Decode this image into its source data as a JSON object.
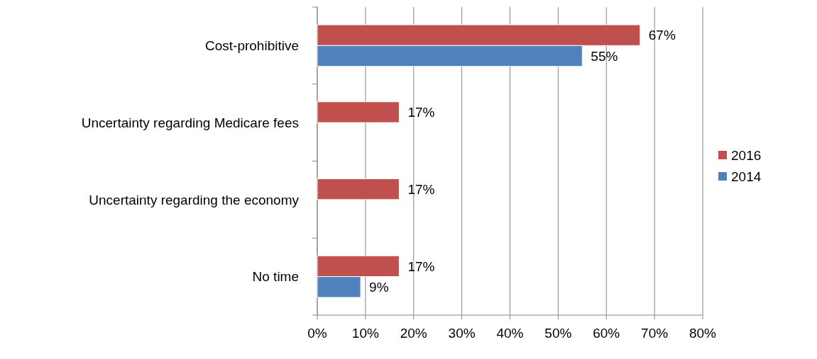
{
  "chart_data": {
    "type": "bar",
    "orientation": "horizontal",
    "categories": [
      "Cost-prohibitive",
      "Uncertainty regarding Medicare fees",
      "Uncertainty regarding the economy",
      "No time"
    ],
    "series": [
      {
        "name": "2016",
        "color": "#c0504d",
        "values": [
          67,
          17,
          17,
          17
        ],
        "value_labels": [
          "67%",
          "17%",
          "17%",
          "17%"
        ]
      },
      {
        "name": "2014",
        "color": "#4f81bd",
        "values": [
          55,
          null,
          null,
          9
        ],
        "value_labels": [
          "55%",
          null,
          null,
          "9%"
        ]
      }
    ],
    "xlim": [
      0,
      80
    ],
    "xticks": [
      {
        "value": 0,
        "label": "0%"
      },
      {
        "value": 10,
        "label": "10%"
      },
      {
        "value": 20,
        "label": "20%"
      },
      {
        "value": 30,
        "label": "30%"
      },
      {
        "value": 40,
        "label": "40%"
      },
      {
        "value": 50,
        "label": "50%"
      },
      {
        "value": 60,
        "label": "60%"
      },
      {
        "value": 70,
        "label": "70%"
      },
      {
        "value": 80,
        "label": "80%"
      }
    ],
    "grid": "x",
    "legend": "right"
  }
}
